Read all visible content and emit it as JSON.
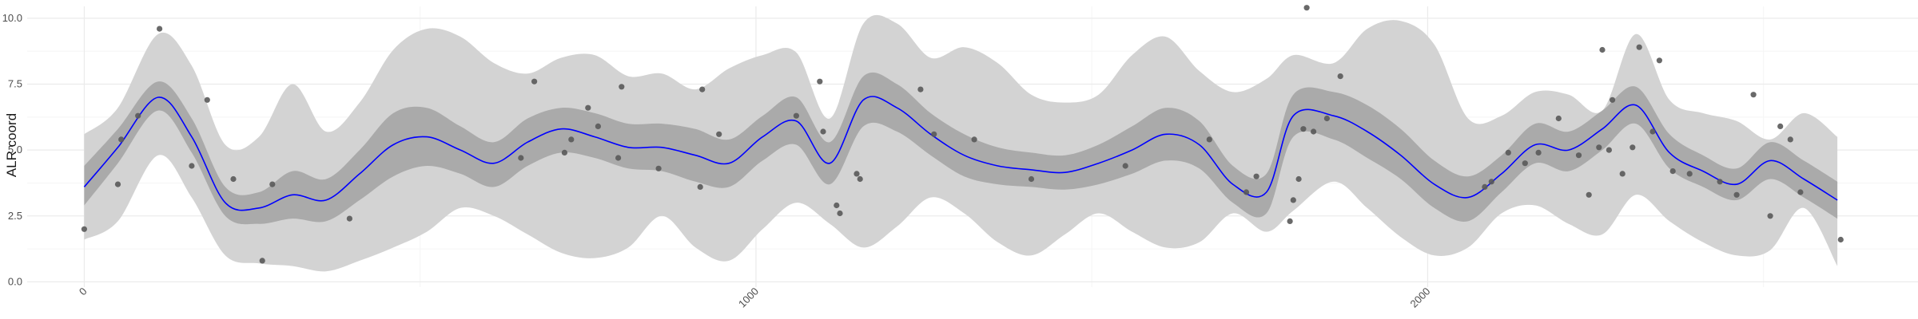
{
  "chart_data": {
    "type": "line",
    "title": "",
    "xlabel": "",
    "ylabel": "ALR coord",
    "xlim": [
      -85,
      2730
    ],
    "ylim": [
      -0.2,
      10.45
    ],
    "x_ticks": [
      0,
      1000,
      2000
    ],
    "y_ticks": [
      0.0,
      2.5,
      5.0,
      7.5,
      10.0
    ],
    "x_tick_labels": [
      "0",
      "1000",
      "2000"
    ],
    "y_tick_labels": [
      "0.0",
      "2.5",
      "5.0",
      "7.5",
      "10.0"
    ],
    "grid": true,
    "legend": "none",
    "colors": {
      "mean_line": "#0000ff",
      "inner_band": "#aaaaaa",
      "outer_band": "#d3d3d3",
      "points": "#595959",
      "grid_major": "#ebebeb",
      "grid_minor": "#f5f5f5"
    },
    "series": [
      {
        "kind": "outer_band",
        "x": [
          0,
          50,
          110,
          160,
          210,
          260,
          310,
          360,
          410,
          460,
          510,
          560,
          610,
          660,
          710,
          760,
          810,
          860,
          910,
          960,
          1010,
          1060,
          1110,
          1160,
          1210,
          1260,
          1310,
          1360,
          1410,
          1460,
          1510,
          1560,
          1610,
          1660,
          1710,
          1760,
          1800,
          1860,
          1910,
          1960,
          2010,
          2060,
          2110,
          2160,
          2210,
          2260,
          2310,
          2360,
          2410,
          2460,
          2510,
          2560,
          2610
        ],
        "lower": [
          1.6,
          2.3,
          4.8,
          3.2,
          1.0,
          0.7,
          0.6,
          0.4,
          0.8,
          1.3,
          1.9,
          2.8,
          2.5,
          1.8,
          1.1,
          0.9,
          1.3,
          2.5,
          1.3,
          0.8,
          2.0,
          3.0,
          2.2,
          1.3,
          2.1,
          3.2,
          2.6,
          1.5,
          1.0,
          1.8,
          2.6,
          1.9,
          1.3,
          1.5,
          2.6,
          1.9,
          2.7,
          3.8,
          2.8,
          1.7,
          1.0,
          1.3,
          2.6,
          2.9,
          2.2,
          1.8,
          3.3,
          2.3,
          1.5,
          1.0,
          1.2,
          2.8,
          0.6
        ],
        "upper": [
          5.6,
          6.6,
          9.4,
          8.2,
          5.2,
          5.5,
          7.5,
          5.7,
          6.8,
          8.8,
          9.6,
          9.3,
          8.3,
          7.9,
          8.5,
          8.6,
          7.8,
          7.9,
          7.3,
          8.1,
          8.6,
          8.7,
          6.2,
          9.8,
          9.8,
          8.5,
          8.9,
          8.3,
          7.1,
          6.8,
          7.1,
          8.6,
          9.3,
          8.0,
          7.2,
          7.7,
          8.6,
          8.3,
          9.6,
          9.9,
          9.0,
          6.2,
          6.3,
          7.2,
          7.1,
          6.5,
          9.4,
          6.9,
          6.4,
          6.1,
          5.4,
          6.4,
          5.5
        ]
      },
      {
        "kind": "inner_band",
        "x": [
          0,
          50,
          110,
          160,
          210,
          260,
          310,
          360,
          410,
          460,
          510,
          560,
          610,
          660,
          710,
          760,
          810,
          860,
          910,
          960,
          1010,
          1060,
          1110,
          1160,
          1210,
          1260,
          1310,
          1360,
          1410,
          1460,
          1510,
          1560,
          1610,
          1660,
          1710,
          1760,
          1800,
          1860,
          1910,
          1960,
          2010,
          2060,
          2110,
          2160,
          2210,
          2260,
          2310,
          2360,
          2410,
          2460,
          2510,
          2560,
          2610
        ],
        "lower": [
          2.9,
          4.5,
          6.5,
          4.9,
          2.5,
          2.2,
          2.4,
          2.3,
          3.1,
          4.0,
          4.4,
          4.1,
          3.6,
          4.4,
          4.9,
          4.7,
          4.3,
          4.2,
          3.8,
          3.6,
          4.6,
          5.2,
          3.7,
          5.9,
          5.7,
          4.8,
          4.0,
          3.7,
          3.6,
          3.5,
          3.7,
          4.1,
          4.6,
          4.3,
          3.0,
          2.6,
          5.5,
          5.4,
          4.7,
          3.9,
          2.8,
          2.3,
          3.4,
          4.5,
          4.2,
          5.0,
          6.0,
          4.3,
          3.6,
          3.1,
          3.9,
          3.2,
          2.4
        ],
        "upper": [
          4.4,
          5.8,
          7.6,
          6.2,
          3.6,
          3.4,
          4.2,
          3.9,
          5.0,
          6.4,
          6.6,
          5.9,
          5.3,
          6.2,
          6.6,
          6.4,
          6.0,
          6.0,
          5.8,
          5.4,
          6.3,
          7.0,
          5.3,
          7.8,
          7.5,
          6.4,
          5.6,
          5.1,
          4.9,
          4.8,
          5.2,
          5.9,
          6.6,
          6.1,
          4.4,
          4.1,
          7.1,
          7.2,
          6.7,
          5.8,
          4.6,
          4.0,
          4.8,
          6.0,
          5.7,
          6.5,
          7.4,
          5.6,
          4.8,
          4.3,
          5.3,
          4.6,
          3.8
        ]
      },
      {
        "kind": "mean",
        "x": [
          0,
          50,
          110,
          160,
          210,
          260,
          310,
          360,
          410,
          460,
          510,
          560,
          610,
          660,
          710,
          760,
          810,
          860,
          910,
          960,
          1010,
          1060,
          1110,
          1160,
          1210,
          1260,
          1310,
          1360,
          1410,
          1460,
          1510,
          1560,
          1610,
          1660,
          1710,
          1760,
          1800,
          1860,
          1910,
          1960,
          2010,
          2060,
          2110,
          2160,
          2210,
          2260,
          2310,
          2360,
          2410,
          2460,
          2510,
          2560,
          2610
        ],
        "y": [
          3.6,
          5.1,
          7.0,
          5.5,
          3.0,
          2.8,
          3.3,
          3.1,
          4.1,
          5.2,
          5.5,
          5.0,
          4.5,
          5.3,
          5.8,
          5.5,
          5.1,
          5.1,
          4.8,
          4.5,
          5.5,
          6.1,
          4.5,
          6.9,
          6.6,
          5.6,
          4.8,
          4.4,
          4.25,
          4.15,
          4.5,
          5.0,
          5.6,
          5.2,
          3.7,
          3.4,
          6.3,
          6.3,
          5.7,
          4.8,
          3.7,
          3.2,
          4.1,
          5.2,
          5.0,
          5.8,
          6.7,
          4.9,
          4.2,
          3.7,
          4.6,
          3.9,
          3.1
        ]
      },
      {
        "kind": "points",
        "x": [
          0,
          50,
          55,
          80,
          112,
          160,
          183,
          222,
          265,
          280,
          395,
          650,
          670,
          715,
          725,
          750,
          765,
          795,
          800,
          855,
          917,
          920,
          945,
          1060,
          1095,
          1100,
          1120,
          1125,
          1150,
          1155,
          1245,
          1265,
          1325,
          1410,
          1550,
          1675,
          1730,
          1745,
          1795,
          1800,
          1808,
          1815,
          1820,
          1830,
          1850,
          1870,
          2085,
          2095,
          2120,
          2145,
          2165,
          2195,
          2225,
          2240,
          2255,
          2260,
          2270,
          2275,
          2290,
          2305,
          2315,
          2335,
          2345,
          2365,
          2390,
          2435,
          2460,
          2485,
          2510,
          2525,
          2540,
          2555,
          2615
        ],
        "y": [
          2.0,
          3.7,
          5.4,
          6.3,
          9.6,
          4.4,
          6.9,
          3.9,
          0.8,
          3.7,
          2.4,
          4.7,
          7.6,
          4.9,
          5.4,
          6.6,
          5.9,
          4.7,
          7.4,
          4.3,
          3.6,
          7.3,
          5.6,
          6.3,
          7.6,
          5.7,
          2.9,
          2.6,
          4.1,
          3.9,
          7.3,
          5.6,
          5.4,
          3.9,
          4.4,
          5.4,
          3.4,
          4.0,
          2.3,
          3.1,
          3.9,
          5.8,
          10.4,
          5.7,
          6.2,
          7.8,
          3.6,
          3.8,
          4.9,
          4.5,
          4.9,
          6.2,
          4.8,
          3.3,
          5.1,
          8.8,
          5.0,
          6.9,
          4.1,
          5.1,
          8.9,
          5.7,
          8.4,
          4.2,
          4.1,
          3.8,
          3.3,
          7.1,
          2.5,
          5.9,
          5.4,
          3.4,
          1.6
        ]
      }
    ]
  }
}
